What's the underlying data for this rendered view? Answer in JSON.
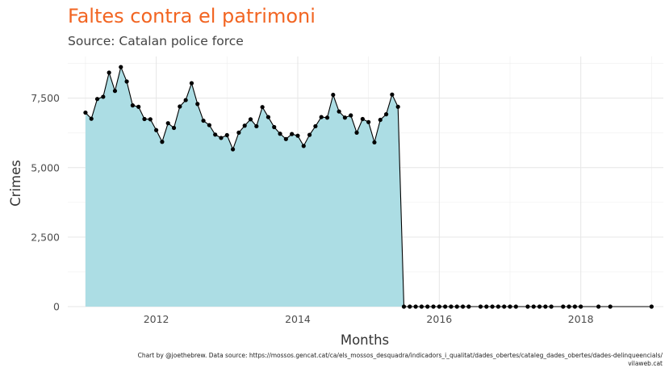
{
  "chart_data": {
    "type": "area",
    "title": "Faltes contra el patrimoni",
    "subtitle": "Source: Catalan police force",
    "xlabel": "Months",
    "ylabel": "Crimes",
    "caption_line1": "Chart by @joethebrew. Data source: https://mossos.gencat.cat/ca/els_mossos_desquadra/indicadors_i_qualitat/dades_obertes/cataleg_dades_obertes/dades-delinqueencials/",
    "caption_line2": "vilaweb.cat",
    "x_ticks": [
      "2012",
      "2014",
      "2016",
      "2018"
    ],
    "y_ticks": [
      "0",
      "2,500",
      "5,000",
      "7,500"
    ],
    "y_tick_values": [
      0,
      2500,
      5000,
      7500
    ],
    "xlim": [
      "2010-10",
      "2019-03"
    ],
    "ylim": [
      0,
      9000
    ],
    "grid": true,
    "colors": {
      "fill": "#acdde4",
      "line": "#000000",
      "title": "#f26522",
      "grid": "#e6e6e6"
    },
    "x": [
      "2011-01",
      "2011-02",
      "2011-03",
      "2011-04",
      "2011-05",
      "2011-06",
      "2011-07",
      "2011-08",
      "2011-09",
      "2011-10",
      "2011-11",
      "2011-12",
      "2012-01",
      "2012-02",
      "2012-03",
      "2012-04",
      "2012-05",
      "2012-06",
      "2012-07",
      "2012-08",
      "2012-09",
      "2012-10",
      "2012-11",
      "2012-12",
      "2013-01",
      "2013-02",
      "2013-03",
      "2013-04",
      "2013-05",
      "2013-06",
      "2013-07",
      "2013-08",
      "2013-09",
      "2013-10",
      "2013-11",
      "2013-12",
      "2014-01",
      "2014-02",
      "2014-03",
      "2014-04",
      "2014-05",
      "2014-06",
      "2014-07",
      "2014-08",
      "2014-09",
      "2014-10",
      "2014-11",
      "2014-12",
      "2015-01",
      "2015-02",
      "2015-03",
      "2015-04",
      "2015-05",
      "2015-06",
      "2015-07",
      "2015-08",
      "2015-09",
      "2015-10",
      "2015-11",
      "2015-12",
      "2016-01",
      "2016-02",
      "2016-03",
      "2016-04",
      "2016-05",
      "2016-06",
      "2016-08",
      "2016-09",
      "2016-10",
      "2016-11",
      "2016-12",
      "2017-01",
      "2017-02",
      "2017-04",
      "2017-05",
      "2017-06",
      "2017-07",
      "2017-08",
      "2017-10",
      "2017-11",
      "2017-12",
      "2018-01",
      "2018-04",
      "2018-06",
      "2019-01"
    ],
    "y": [
      6980,
      6760,
      7470,
      7550,
      8420,
      7760,
      8620,
      8100,
      7240,
      7190,
      6750,
      6740,
      6350,
      5930,
      6600,
      6430,
      7200,
      7430,
      8040,
      7290,
      6690,
      6530,
      6190,
      6070,
      6170,
      5660,
      6260,
      6510,
      6740,
      6490,
      7180,
      6820,
      6460,
      6220,
      6030,
      6210,
      6150,
      5780,
      6180,
      6490,
      6820,
      6800,
      7620,
      7020,
      6800,
      6880,
      6260,
      6750,
      6640,
      5910,
      6720,
      6920,
      7630,
      7190,
      0,
      0,
      0,
      0,
      0,
      0,
      0,
      0,
      0,
      0,
      0,
      0,
      0,
      0,
      0,
      0,
      0,
      0,
      0,
      0,
      0,
      0,
      0,
      0,
      0,
      0,
      0,
      0,
      0,
      0,
      0
    ]
  }
}
